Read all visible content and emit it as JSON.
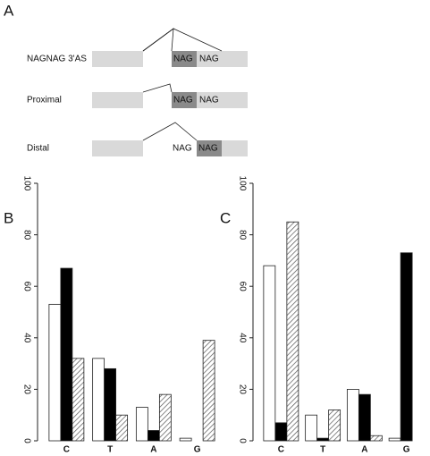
{
  "panel_a": {
    "label": "A",
    "rows": [
      {
        "name": "NAGNAG 3'AS",
        "first": "NAG",
        "second": "NAG"
      },
      {
        "name": "Proximal",
        "first": "NAG",
        "second": "NAG"
      },
      {
        "name": "Distal",
        "first": "NAG",
        "second": "NAG"
      }
    ]
  },
  "chart_data": [
    {
      "type": "bar",
      "label": "B",
      "categories": [
        "C",
        "T",
        "A",
        "G"
      ],
      "ylim": [
        0,
        100
      ],
      "yticks": [
        0,
        20,
        40,
        60,
        80,
        100
      ],
      "series": [
        {
          "color": "#ffffff",
          "values": [
            53,
            32,
            13,
            1
          ]
        },
        {
          "color": "#000000",
          "values": [
            67,
            28,
            4,
            0
          ]
        },
        {
          "color": "#ffffff",
          "pattern": "hatch",
          "values": [
            32,
            10,
            18,
            39
          ]
        }
      ]
    },
    {
      "type": "bar",
      "label": "C",
      "categories": [
        "C",
        "T",
        "A",
        "G"
      ],
      "ylim": [
        0,
        100
      ],
      "yticks": [
        0,
        20,
        40,
        60,
        80,
        100
      ],
      "series": [
        {
          "color": "#ffffff",
          "values": [
            68,
            10,
            20,
            1
          ]
        },
        {
          "color": "#000000",
          "values": [
            7,
            1,
            18,
            73
          ]
        },
        {
          "color": "#ffffff",
          "pattern": "hatch",
          "values": [
            85,
            12,
            2,
            0
          ]
        }
      ]
    }
  ]
}
